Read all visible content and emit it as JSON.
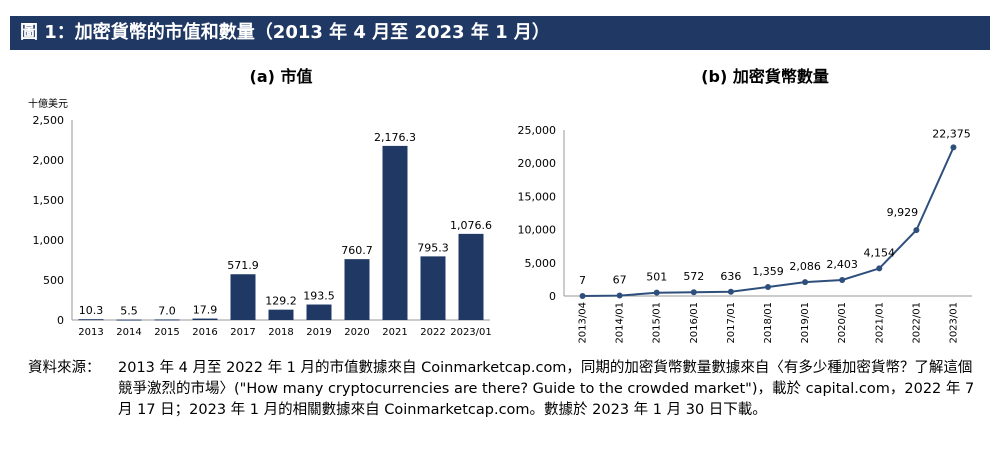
{
  "banner_title": "圖 1：加密貨幣的市值和數量（2013 年 4 月至 2023 年 1 月）",
  "colors": {
    "banner": "#1f3864",
    "bar": "#1f3864",
    "line": "#2e4f7c"
  },
  "chart_data": [
    {
      "type": "bar",
      "title": "(a)  市值",
      "unit_label": "十億美元",
      "categories": [
        "2013",
        "2014",
        "2015",
        "2016",
        "2017",
        "2018",
        "2019",
        "2020",
        "2021",
        "2022",
        "2023/01"
      ],
      "values": [
        10.3,
        5.5,
        7.0,
        17.9,
        571.9,
        129.2,
        193.5,
        760.7,
        2176.3,
        795.3,
        1076.6
      ],
      "value_labels": [
        "10.3",
        "5.5",
        "7.0",
        "17.9",
        "571.9",
        "129.2",
        "193.5",
        "760.7",
        "2,176.3",
        "795.3",
        "1,076.6"
      ],
      "ylim": [
        0,
        2500
      ],
      "yticks": [
        0,
        500,
        1000,
        1500,
        2000,
        2500
      ],
      "ytick_labels": [
        "0",
        "500",
        "1,000",
        "1,500",
        "2,000",
        "2,500"
      ],
      "grid": false
    },
    {
      "type": "line",
      "title": "(b)  加密貨幣數量",
      "categories": [
        "2013/04",
        "2014/01",
        "2015/01",
        "2016/01",
        "2017/01",
        "2018/01",
        "2019/01",
        "2020/01",
        "2021/01",
        "2022/01",
        "2023/01"
      ],
      "values": [
        7,
        67,
        501,
        572,
        636,
        1359,
        2086,
        2403,
        4154,
        9929,
        22375
      ],
      "value_labels": [
        "7",
        "67",
        "501",
        "572",
        "636",
        "1,359",
        "2,086",
        "2,403",
        "4,154",
        "9,929",
        "22,375"
      ],
      "ylim": [
        0,
        25000
      ],
      "yticks": [
        0,
        5000,
        10000,
        15000,
        20000,
        25000
      ],
      "ytick_labels": [
        "0",
        "5,000",
        "10,000",
        "15,000",
        "20,000",
        "25,000"
      ],
      "grid": false
    }
  ],
  "source": {
    "label": "資料來源：",
    "text": "2013 年 4 月至 2022 年 1 月的市值數據來自 Coinmarketcap.com，同期的加密貨幣數量數據來自〈有多少種加密貨幣？了解這個競爭激烈的市場〉(\"How many cryptocurrencies are there? Guide to the crowded market\")，載於 capital.com，2022 年 7 月 17 日；2023 年 1 月的相關數據來自 Coinmarketcap.com。數據於 2023 年 1 月 30 日下載。"
  }
}
